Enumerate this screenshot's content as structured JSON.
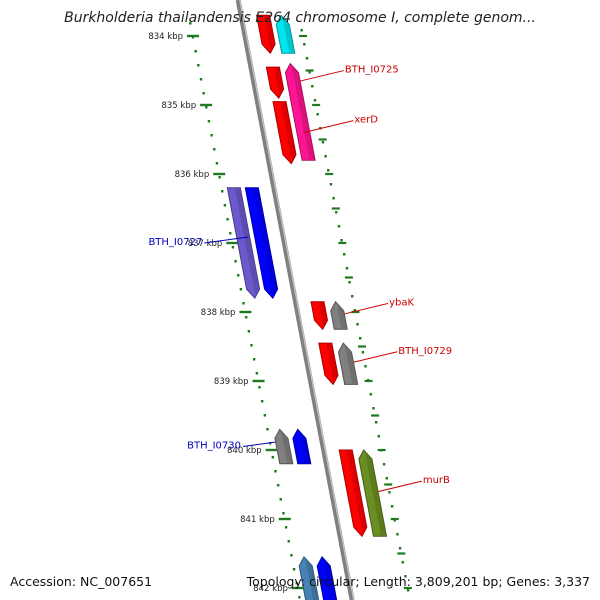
{
  "title": "Burkholderia thailandensis E264 chromosome I, complete genom...",
  "footer": {
    "accession": "Accession: NC_007651",
    "summary": "Topology: circular; Length: 3,809,201 bp; Genes: 3,337"
  },
  "colors": {
    "backbone": "#808080",
    "tick": "#1f7a1f",
    "red_label": "#cc0000",
    "blue_label": "#0000bb"
  },
  "ruler": [
    {
      "label": "834 kbp",
      "kbp": 834
    },
    {
      "label": "835 kbp",
      "kbp": 835
    },
    {
      "label": "836 kbp",
      "kbp": 836
    },
    {
      "label": "837 kbp",
      "kbp": 837
    },
    {
      "label": "838 kbp",
      "kbp": 838
    },
    {
      "label": "839 kbp",
      "kbp": 839
    },
    {
      "label": "840 kbp",
      "kbp": 840
    },
    {
      "label": "841 kbp",
      "kbp": 841
    },
    {
      "label": "842 kbp",
      "kbp": 842
    }
  ],
  "features": [
    {
      "track": -1,
      "start": 833.7,
      "end": 834.25,
      "strand": "-",
      "color": "#ff0000"
    },
    {
      "track": -2,
      "start": 833.7,
      "end": 834.25,
      "strand": "+",
      "color": "#00e5ee"
    },
    {
      "track": -1,
      "start": 834.45,
      "end": 834.9,
      "strand": "-",
      "color": "#ff0000",
      "label": "BTH_I0725",
      "label_color": "#cc0000"
    },
    {
      "track": -2,
      "start": 834.4,
      "end": 835.8,
      "strand": "+",
      "color": "#ff1493"
    },
    {
      "track": -1,
      "start": 834.95,
      "end": 835.85,
      "strand": "-",
      "color": "#ff0000",
      "label": "xerD",
      "label_color": "#cc0000"
    },
    {
      "track": 2,
      "start": 836.2,
      "end": 837.8,
      "strand": "-",
      "color": "#6a5acd"
    },
    {
      "track": 1,
      "start": 836.2,
      "end": 837.8,
      "strand": "-",
      "color": "#0000ff",
      "label": "BTH_I0727",
      "label_color": "#0000bb"
    },
    {
      "track": -1,
      "start": 837.85,
      "end": 838.25,
      "strand": "-",
      "color": "#ff0000",
      "label": "ybaK",
      "label_color": "#cc0000"
    },
    {
      "track": -2,
      "start": 837.85,
      "end": 838.25,
      "strand": "+",
      "color": "#808080"
    },
    {
      "track": -1,
      "start": 838.45,
      "end": 839.05,
      "strand": "-",
      "color": "#ff0000",
      "label": "BTH_I0729",
      "label_color": "#cc0000"
    },
    {
      "track": -2,
      "start": 838.45,
      "end": 839.05,
      "strand": "+",
      "color": "#808080"
    },
    {
      "track": 1,
      "start": 839.7,
      "end": 840.2,
      "strand": "+",
      "color": "#0000ff",
      "label": "BTH_I0730",
      "label_color": "#0000bb"
    },
    {
      "track": 2,
      "start": 839.7,
      "end": 840.2,
      "strand": "+",
      "color": "#808080"
    },
    {
      "track": -1,
      "start": 840.0,
      "end": 841.25,
      "strand": "-",
      "color": "#ff0000",
      "label": "murB",
      "label_color": "#cc0000"
    },
    {
      "track": -2,
      "start": 840.0,
      "end": 841.25,
      "strand": "+",
      "color": "#6b8e23"
    },
    {
      "track": 2,
      "start": 841.55,
      "end": 842.2,
      "strand": "+",
      "color": "#4682b4"
    },
    {
      "track": 1,
      "start": 841.55,
      "end": 842.2,
      "strand": "+",
      "color": "#0000ff"
    }
  ]
}
